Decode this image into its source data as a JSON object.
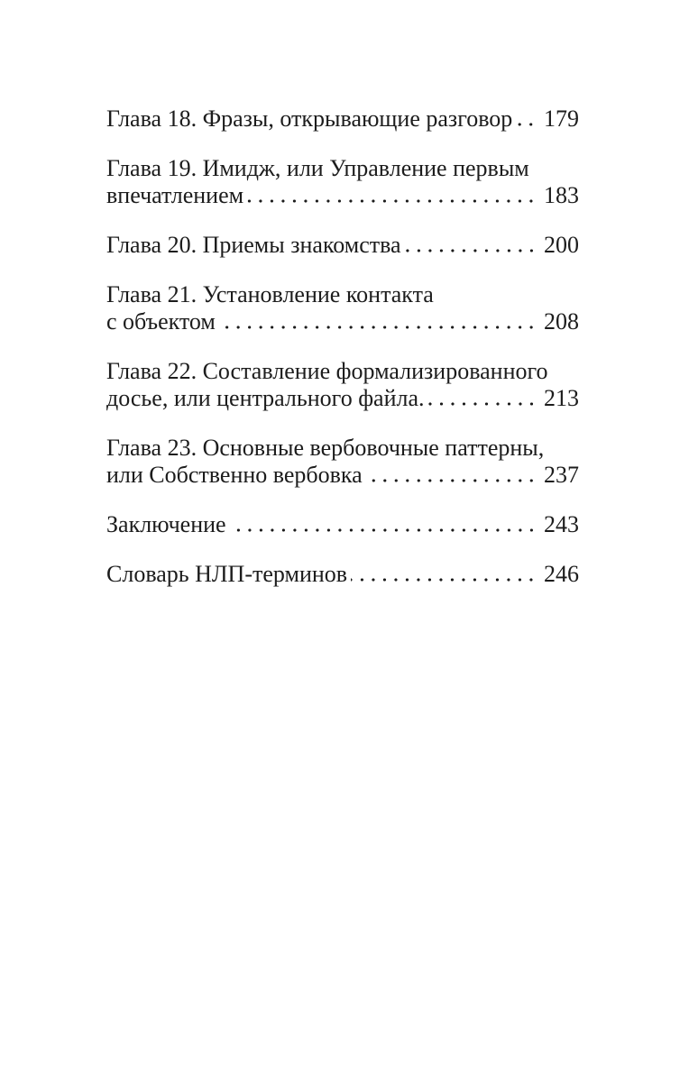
{
  "page": {
    "kind": "book-table-of-contents",
    "language": "ru",
    "background_color": "#ffffff",
    "text_color": "#1c1c1c"
  },
  "toc": {
    "entries": [
      {
        "line1": "Глава 18. Фразы, открывающие разговор",
        "page": "179"
      },
      {
        "line1": "Глава 19. Имидж, или Управление первым",
        "line2": "впечатлением",
        "page": "183"
      },
      {
        "line1": "Глава 20. Приемы знакомства",
        "page": "200"
      },
      {
        "line1": "Глава 21. Установление контакта",
        "line2": "с объектом",
        "page": "208"
      },
      {
        "line1": "Глава 22. Составление формализированного",
        "line2": "досье, или центрального файла.",
        "page": "213"
      },
      {
        "line1": "Глава 23. Основные вербовочные паттерны,",
        "line2": "или Собственно вербовка",
        "page": "237"
      },
      {
        "line1": "Заключение",
        "page": "243"
      },
      {
        "line1": "Словарь НЛП-терминов",
        "page": "246"
      }
    ]
  }
}
